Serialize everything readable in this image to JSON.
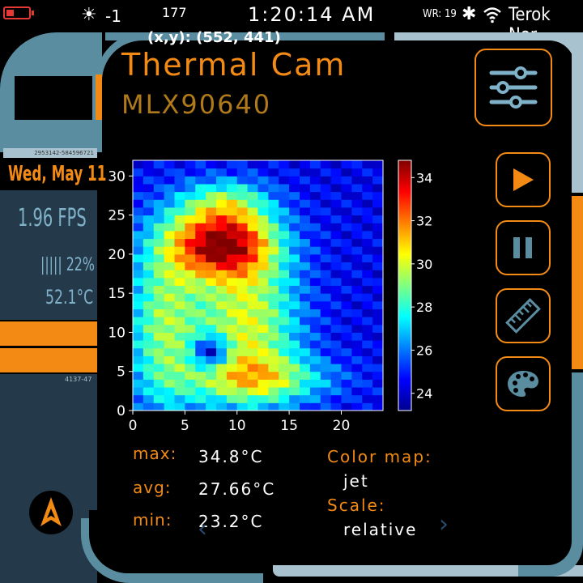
{
  "status_bar": {
    "battery_level": 0.35,
    "brightness_value": "-1",
    "extra_number": "177",
    "time": "1:20:14 AM",
    "wr_label": "WR: 19",
    "carrier": "Terok Nor",
    "colors": {
      "battery": "#e53935",
      "text": "#ffffff"
    }
  },
  "cursor_readout": "(x,y): (552, 441)",
  "header": {
    "title": "Thermal Cam",
    "subtitle": "MLX90640"
  },
  "left_panel": {
    "strip_code": "2953142-584596721",
    "date": "Wed, May 11",
    "fps": "1.96 FPS",
    "load": "||||| 22%",
    "cpu_temp": "52.1°C",
    "small_code": "4137-47"
  },
  "stats": {
    "max_label": "max:",
    "max_value": "34.8°C",
    "avg_label": "avg:",
    "avg_value": "27.66°C",
    "min_label": "min:",
    "min_value": "23.2°C"
  },
  "color_map": {
    "label": "Color map:",
    "value": "jet",
    "scale_label": "Scale:",
    "scale_value": "relative"
  },
  "buttons": {
    "settings": "sliders-icon",
    "play": "play-icon",
    "pause": "pause-icon",
    "measure": "ruler-icon",
    "palette": "palette-icon"
  },
  "colors": {
    "accent": "#f28a14",
    "frame_blue": "#5a8da0",
    "frame_light": "#a8c2cf",
    "panel": "#243a4a"
  },
  "chart_data": {
    "type": "heatmap",
    "x_ticks": [
      "0",
      "5",
      "10",
      "15",
      "20"
    ],
    "y_ticks": [
      "0",
      "5",
      "10",
      "15",
      "20",
      "25",
      "30"
    ],
    "xlim": [
      0,
      24
    ],
    "ylim": [
      0,
      32
    ],
    "colorbar_ticks": [
      "24",
      "26",
      "28",
      "30",
      "32",
      "34"
    ],
    "colorbar_range": [
      23.2,
      34.8
    ],
    "colormap": "jet",
    "grid": false
  }
}
